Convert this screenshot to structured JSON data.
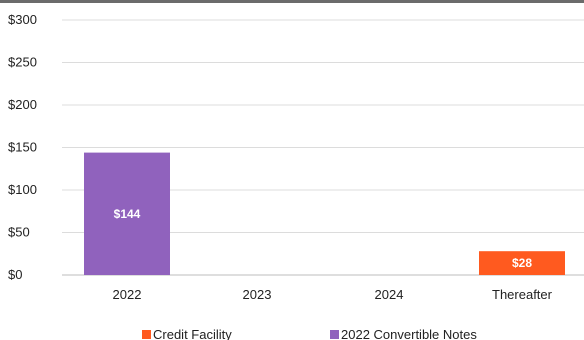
{
  "chart_data": {
    "type": "bar",
    "stacked": true,
    "categories": [
      "2022",
      "2023",
      "2024",
      "Thereafter"
    ],
    "series": [
      {
        "name": "Credit Facility",
        "color": "#ff5a1f",
        "values": [
          0,
          0,
          0,
          28
        ],
        "labels": [
          "",
          "",
          "",
          "$28"
        ]
      },
      {
        "name": "2022 Convertible Notes",
        "color": "#9062bd",
        "values": [
          144,
          0,
          0,
          0
        ],
        "labels": [
          "$144",
          "",
          "",
          ""
        ]
      }
    ],
    "y_ticks": [
      0,
      50,
      100,
      150,
      200,
      250,
      300
    ],
    "y_tick_labels": [
      "$0",
      "$50",
      "$100",
      "$150",
      "$200",
      "$250",
      "$300"
    ],
    "ylim": [
      0,
      300
    ],
    "grid": true,
    "legend_position": "bottom"
  }
}
